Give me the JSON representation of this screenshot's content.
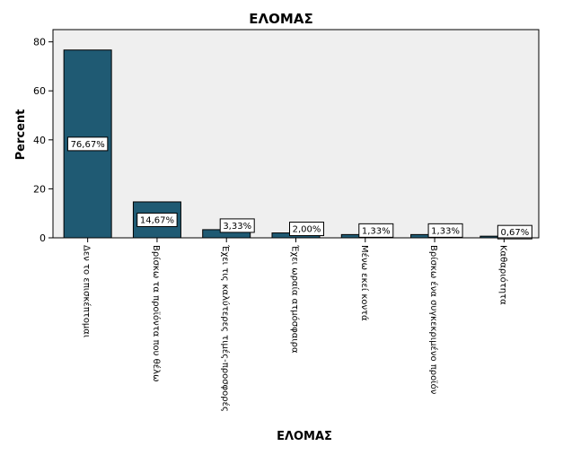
{
  "chart_data": {
    "type": "bar",
    "title": "ΕΛΟΜΑΣ",
    "xlabel": "ΕΛΟΜΑΣ",
    "ylabel": "Percent",
    "ylim": [
      0,
      85
    ],
    "yticks": [
      0,
      20,
      40,
      60,
      80
    ],
    "grid": false,
    "categories": [
      "Δεν το επισκέπτομαι",
      "Βρίσκω τα προϊόντα που θέλω",
      "Έχει τις καλύτερες τιμές-προσφορές",
      "Έχει ωραία ατμόσφαιρα",
      "Μένω εκεί κοντά",
      "Βρίσκω ένα συγκεκριμένο προϊόν",
      "Καθαριότητα"
    ],
    "values": [
      76.67,
      14.67,
      3.33,
      2.0,
      1.33,
      1.33,
      0.67
    ],
    "data_labels": [
      "76,67%",
      "14,67%",
      "3,33%",
      "2,00%",
      "1,33%",
      "1,33%",
      "0,67%"
    ],
    "colors": {
      "bar": "#1f5a73",
      "plot_background": "#efefef",
      "axis": "#000000"
    }
  }
}
